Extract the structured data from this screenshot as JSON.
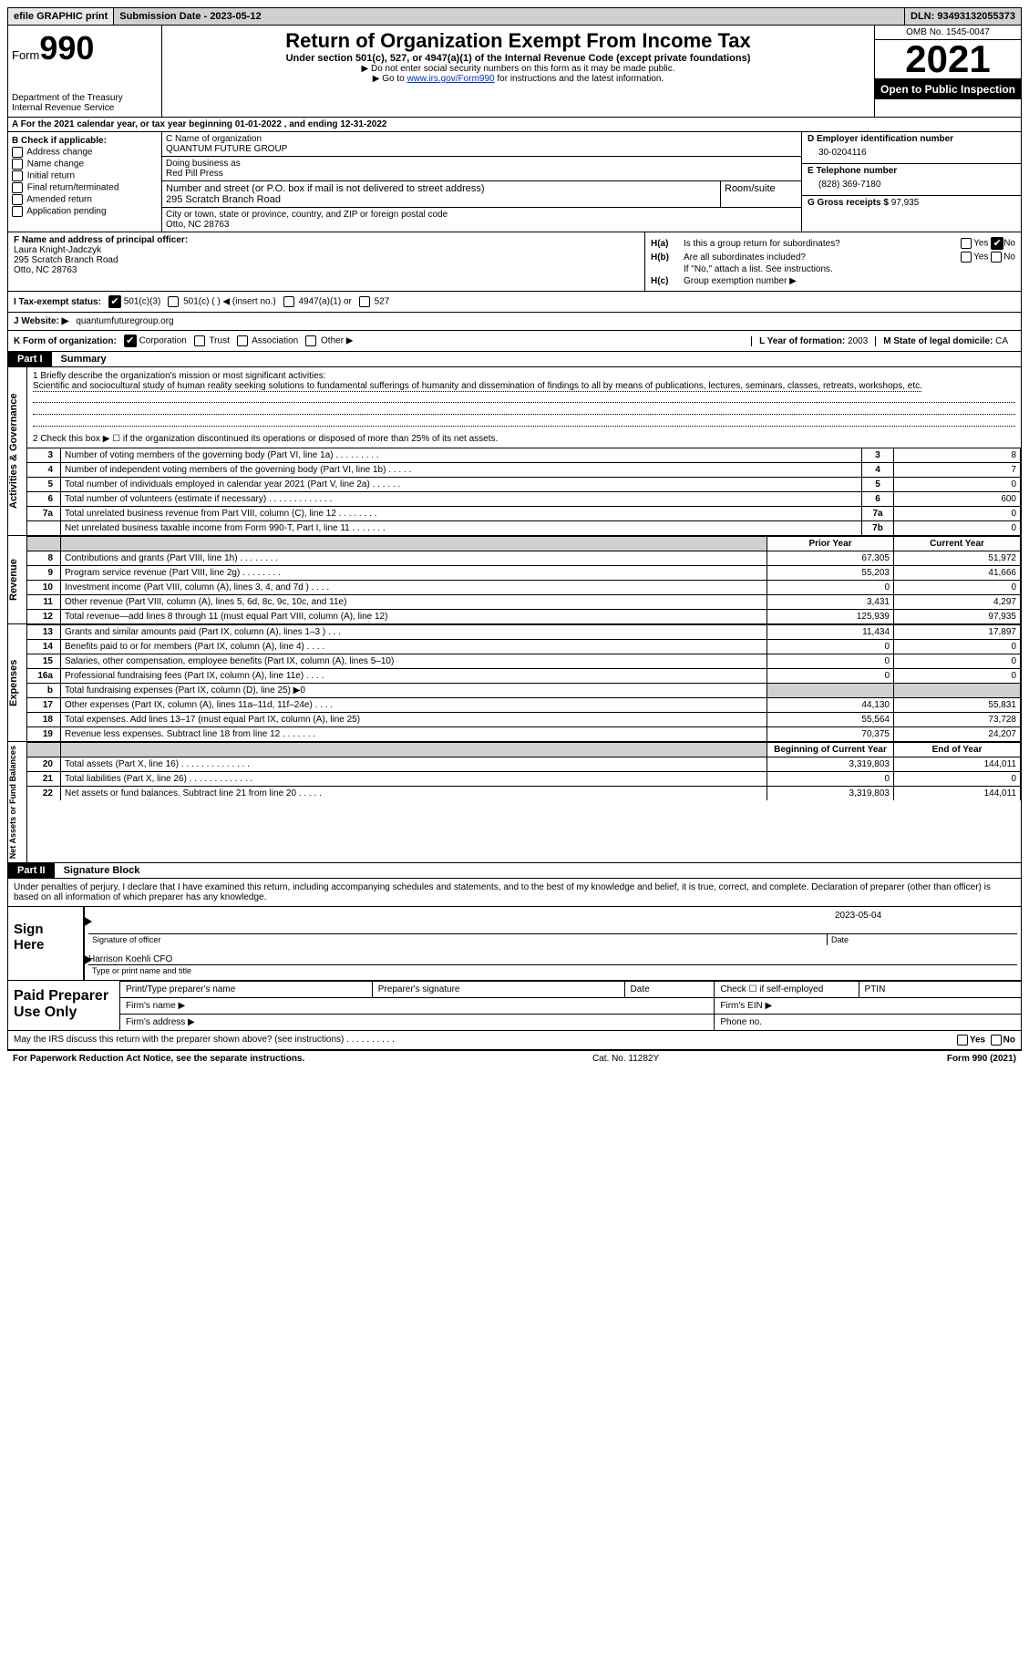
{
  "top": {
    "efile": "efile GRAPHIC print",
    "submission": "Submission Date - 2023-05-12",
    "dln": "DLN: 93493132055373"
  },
  "header": {
    "form_word": "Form",
    "form_num": "990",
    "title": "Return of Organization Exempt From Income Tax",
    "sub1": "Under section 501(c), 527, or 4947(a)(1) of the Internal Revenue Code (except private foundations)",
    "sub2": "▶ Do not enter social security numbers on this form as it may be made public.",
    "sub3_pre": "▶ Go to ",
    "sub3_link": "www.irs.gov/Form990",
    "sub3_post": " for instructions and the latest information.",
    "dept": "Department of the Treasury\nInternal Revenue Service",
    "omb": "OMB No. 1545-0047",
    "year": "2021",
    "inspect": "Open to Public Inspection"
  },
  "row_a": "A For the 2021 calendar year, or tax year beginning 01-01-2022   , and ending 12-31-2022",
  "col_b": {
    "label": "B Check if applicable:",
    "opts": [
      "Address change",
      "Name change",
      "Initial return",
      "Final return/terminated",
      "Amended return",
      "Application pending"
    ]
  },
  "col_c": {
    "name_lbl": "C Name of organization",
    "name": "QUANTUM FUTURE GROUP",
    "dba_lbl": "Doing business as",
    "dba": "Red Pill Press",
    "addr_lbl": "Number and street (or P.O. box if mail is not delivered to street address)",
    "addr": "295 Scratch Branch Road",
    "room_lbl": "Room/suite",
    "city_lbl": "City or town, state or province, country, and ZIP or foreign postal code",
    "city": "Otto, NC  28763"
  },
  "col_d": {
    "ein_lbl": "D Employer identification number",
    "ein": "30-0204116",
    "tel_lbl": "E Telephone number",
    "tel": "(828) 369-7180",
    "gross_lbl": "G Gross receipts $",
    "gross": "97,935"
  },
  "col_f": {
    "lbl": "F  Name and address of principal officer:",
    "name": "Laura Knight-Jadczyk",
    "addr1": "295 Scratch Branch Road",
    "addr2": "Otto, NC  28763"
  },
  "col_h": {
    "a1": "H(a)",
    "a_txt": "Is this a group return for subordinates?",
    "b1": "H(b)",
    "b_txt": "Are all subordinates included?",
    "note": "If \"No,\" attach a list. See instructions.",
    "c1": "H(c)",
    "c_txt": "Group exemption number ▶",
    "yes": "Yes",
    "no": "No"
  },
  "row_i": {
    "lbl": "I   Tax-exempt status:",
    "o1": "501(c)(3)",
    "o2": "501(c) (   ) ◀ (insert no.)",
    "o3": "4947(a)(1) or",
    "o4": "527"
  },
  "row_j": {
    "lbl": "J   Website: ▶",
    "val": "quantumfuturegroup.org"
  },
  "row_k": {
    "lbl": "K Form of organization:",
    "o1": "Corporation",
    "o2": "Trust",
    "o3": "Association",
    "o4": "Other ▶",
    "l_lbl": "L Year of formation:",
    "l_val": "2003",
    "m_lbl": "M State of legal domicile:",
    "m_val": "CA"
  },
  "part1": {
    "num": "Part I",
    "title": "Summary"
  },
  "mission": {
    "q": "1   Briefly describe the organization's mission or most significant activities:",
    "txt": "Scientific and sociocultural study of human reality seeking solutions to fundamental sufferings of humanity and dissemination of findings to all by means of publications, lectures, seminars, classes, retreats, workshops, etc."
  },
  "line2": "2   Check this box ▶ ☐  if the organization discontinued its operations or disposed of more than 25% of its net assets.",
  "gov_rows": [
    {
      "n": "3",
      "d": "Number of voting members of the governing body (Part VI, line 1a)   .    .    .    .    .    .    .    .    .",
      "b": "3",
      "v": "8"
    },
    {
      "n": "4",
      "d": "Number of independent voting members of the governing body (Part VI, line 1b)   .    .    .    .    .",
      "b": "4",
      "v": "7"
    },
    {
      "n": "5",
      "d": "Total number of individuals employed in calendar year 2021 (Part V, line 2a)   .    .    .    .    .    .",
      "b": "5",
      "v": "0"
    },
    {
      "n": "6",
      "d": "Total number of volunteers (estimate if necessary)    .    .    .    .    .    .    .    .    .    .    .    .    .",
      "b": "6",
      "v": "600"
    },
    {
      "n": "7a",
      "d": "Total unrelated business revenue from Part VIII, column (C), line 12   .    .    .    .    .    .    .    .",
      "b": "7a",
      "v": "0"
    },
    {
      "n": "",
      "d": "Net unrelated business taxable income from Form 990-T, Part I, line 11   .    .    .    .    .    .    .",
      "b": "7b",
      "v": "0"
    }
  ],
  "py_lbl": "Prior Year",
  "cy_lbl": "Current Year",
  "rev_rows": [
    {
      "n": "8",
      "d": "Contributions and grants (Part VIII, line 1h)   .    .    .    .    .    .    .    .",
      "py": "67,305",
      "cy": "51,972"
    },
    {
      "n": "9",
      "d": "Program service revenue (Part VIII, line 2g)    .    .    .    .    .    .    .    .",
      "py": "55,203",
      "cy": "41,666"
    },
    {
      "n": "10",
      "d": "Investment income (Part VIII, column (A), lines 3, 4, and 7d )   .    .    .    .",
      "py": "0",
      "cy": "0"
    },
    {
      "n": "11",
      "d": "Other revenue (Part VIII, column (A), lines 5, 6d, 8c, 9c, 10c, and 11e)",
      "py": "3,431",
      "cy": "4,297"
    },
    {
      "n": "12",
      "d": "Total revenue—add lines 8 through 11 (must equal Part VIII, column (A), line 12)",
      "py": "125,939",
      "cy": "97,935"
    }
  ],
  "exp_rows": [
    {
      "n": "13",
      "d": "Grants and similar amounts paid (Part IX, column (A), lines 1–3 )   .    .    .",
      "py": "11,434",
      "cy": "17,897"
    },
    {
      "n": "14",
      "d": "Benefits paid to or for members (Part IX, column (A), line 4)   .    .    .    .",
      "py": "0",
      "cy": "0"
    },
    {
      "n": "15",
      "d": "Salaries, other compensation, employee benefits (Part IX, column (A), lines 5–10)",
      "py": "0",
      "cy": "0"
    },
    {
      "n": "16a",
      "d": "Professional fundraising fees (Part IX, column (A), line 11e)   .    .    .    .",
      "py": "0",
      "cy": "0"
    },
    {
      "n": "b",
      "d": "Total fundraising expenses (Part IX, column (D), line 25) ▶0",
      "py": "",
      "cy": "",
      "shade": true
    },
    {
      "n": "17",
      "d": "Other expenses (Part IX, column (A), lines 11a–11d, 11f–24e)   .    .    .    .",
      "py": "44,130",
      "cy": "55,831"
    },
    {
      "n": "18",
      "d": "Total expenses. Add lines 13–17 (must equal Part IX, column (A), line 25)",
      "py": "55,564",
      "cy": "73,728"
    },
    {
      "n": "19",
      "d": "Revenue less expenses. Subtract line 18 from line 12   .    .    .    .    .    .    .",
      "py": "70,375",
      "cy": "24,207"
    }
  ],
  "boy_lbl": "Beginning of Current Year",
  "eoy_lbl": "End of Year",
  "net_rows": [
    {
      "n": "20",
      "d": "Total assets (Part X, line 16)   .    .    .    .    .    .    .    .    .    .    .    .    .    .",
      "py": "3,319,803",
      "cy": "144,011"
    },
    {
      "n": "21",
      "d": "Total liabilities (Part X, line 26)   .    .    .    .    .    .    .    .    .    .    .    .    .",
      "py": "0",
      "cy": "0"
    },
    {
      "n": "22",
      "d": "Net assets or fund balances. Subtract line 21 from line 20   .    .    .    .    .",
      "py": "3,319,803",
      "cy": "144,011"
    }
  ],
  "part2": {
    "num": "Part II",
    "title": "Signature Block"
  },
  "sig_intro": "Under penalties of perjury, I declare that I have examined this return, including accompanying schedules and statements, and to the best of my knowledge and belief, it is true, correct, and complete. Declaration of preparer (other than officer) is based on all information of which preparer has any knowledge.",
  "sign": {
    "lbl": "Sign Here",
    "sig_lbl": "Signature of officer",
    "date": "2023-05-04",
    "date_lbl": "Date",
    "name": "Harrison Koehli CFO",
    "name_lbl": "Type or print name and title"
  },
  "paid": {
    "lbl": "Paid Preparer Use Only",
    "c1": "Print/Type preparer's name",
    "c2": "Preparer's signature",
    "c3": "Date",
    "c4_pre": "Check ☐ if self-employed",
    "c5": "PTIN",
    "firm_name": "Firm's name   ▶",
    "firm_ein": "Firm's EIN ▶",
    "firm_addr": "Firm's address ▶",
    "phone": "Phone no."
  },
  "footer_q": "May the IRS discuss this return with the preparer shown above? (see instructions)   .    .    .    .    .    .    .    .    .    .",
  "footer": {
    "left": "For Paperwork Reduction Act Notice, see the separate instructions.",
    "mid": "Cat. No. 11282Y",
    "right": "Form 990 (2021)"
  },
  "vtabs": {
    "gov": "Activities & Governance",
    "rev": "Revenue",
    "exp": "Expenses",
    "net": "Net Assets or Fund Balances"
  }
}
